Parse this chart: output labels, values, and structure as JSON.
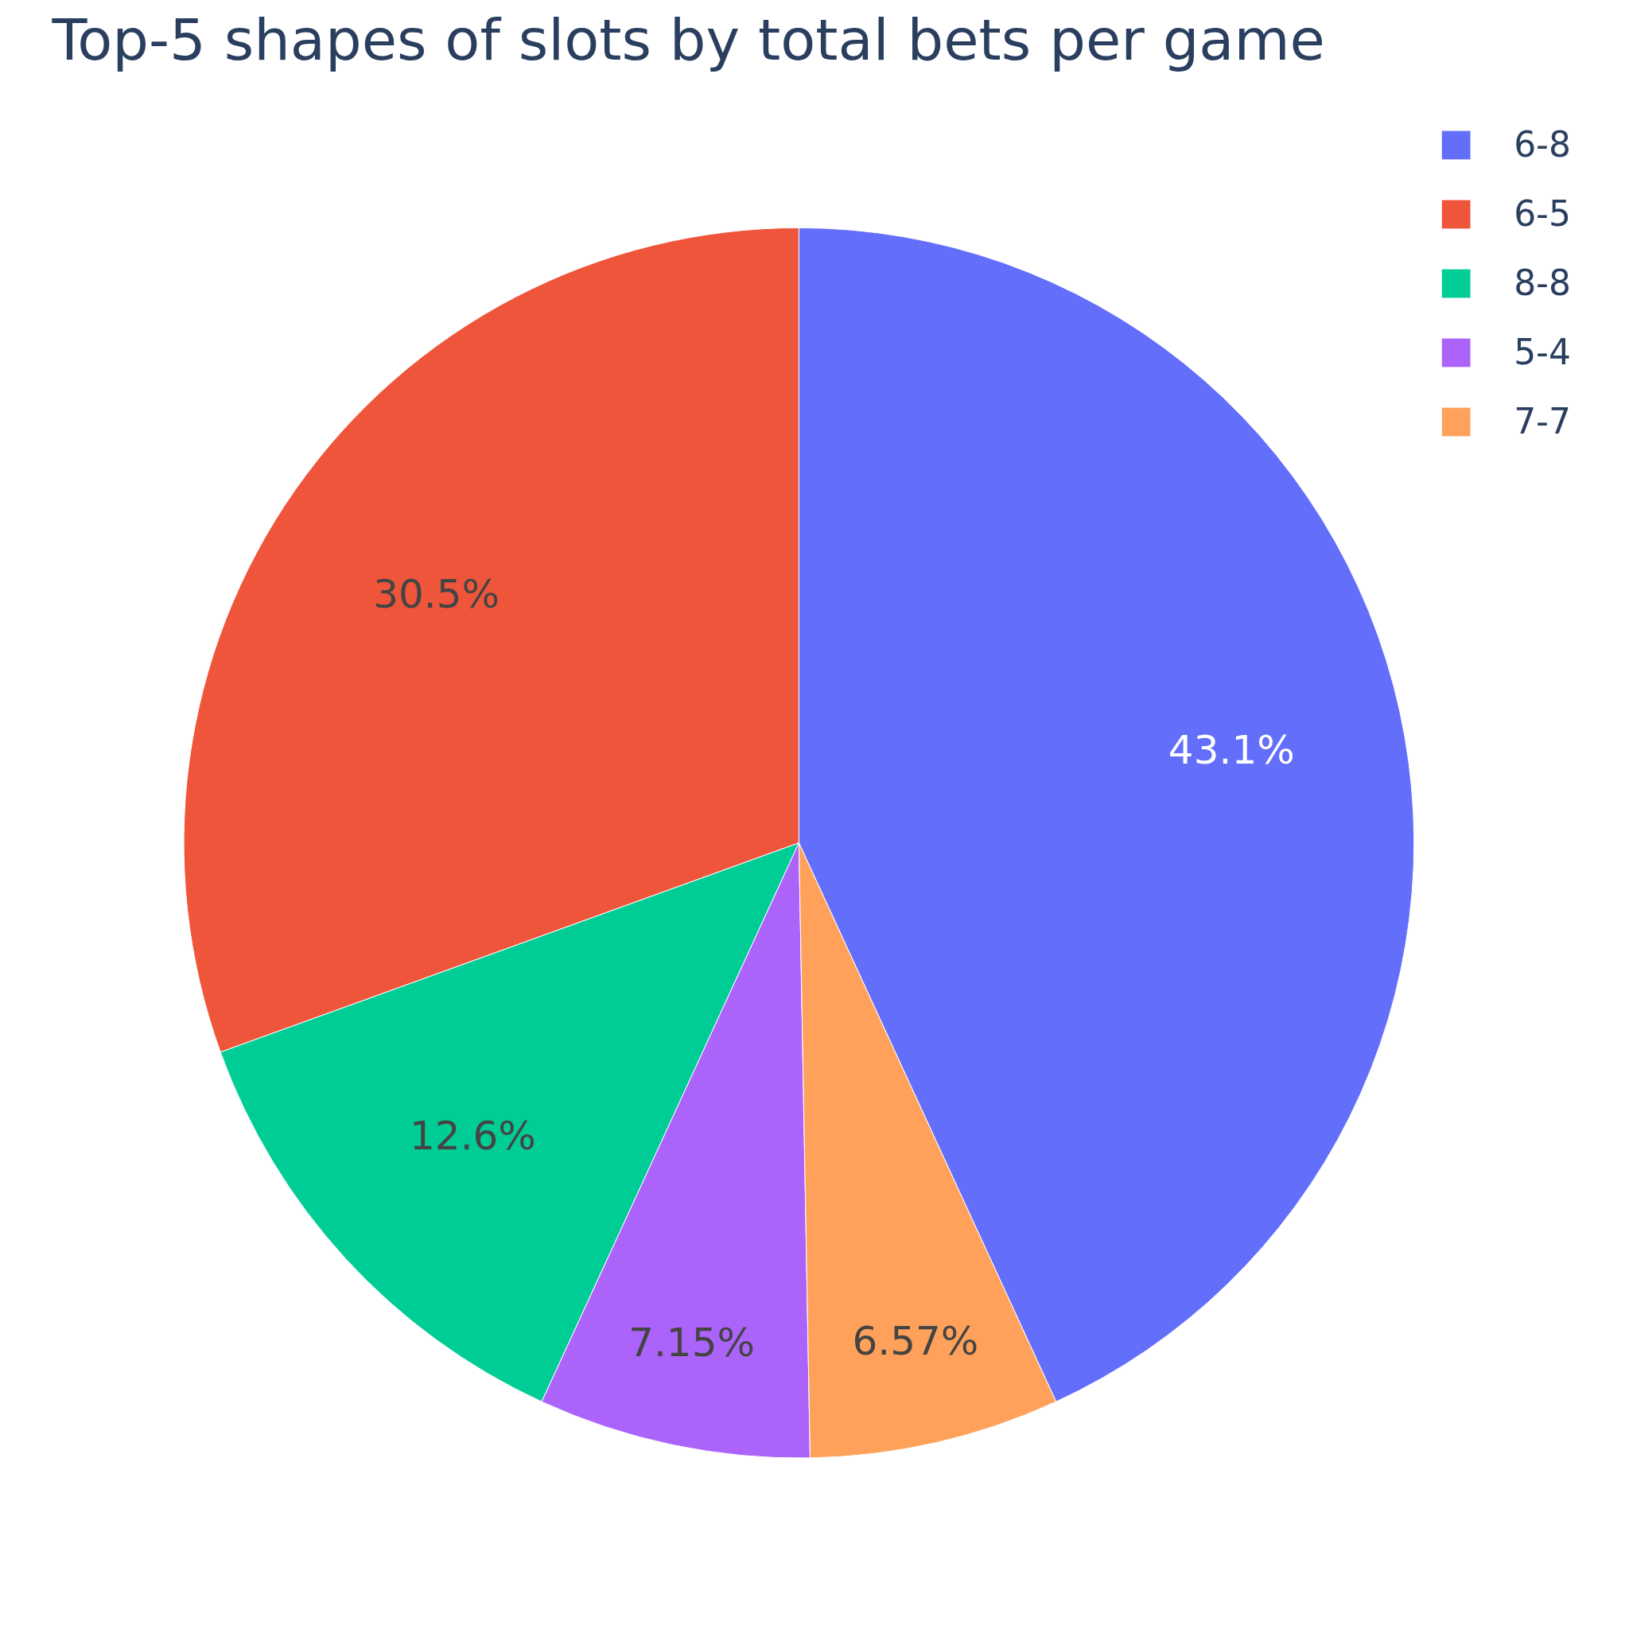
{
  "chart_data": {
    "type": "pie",
    "title": "Top-5 shapes of slots by total bets per game",
    "categories": [
      "6-8",
      "6-5",
      "8-8",
      "5-4",
      "7-7"
    ],
    "values": [
      43.1,
      30.5,
      12.6,
      7.15,
      6.57
    ],
    "colors": [
      "#636efa",
      "#ef553b",
      "#00cc96",
      "#ab63fa",
      "#ffa15a"
    ],
    "value_labels": [
      "43.1%",
      "30.5%",
      "12.6%",
      "7.15%",
      "6.57%"
    ],
    "legend": "top right"
  }
}
